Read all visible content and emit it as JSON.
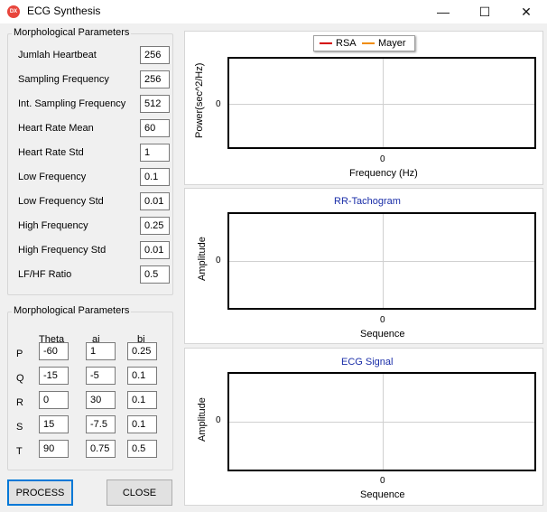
{
  "window": {
    "title": "ECG Synthesis",
    "icon": "DX",
    "minimize_glyph": "—",
    "maximize_glyph": "☐",
    "close_glyph": "✕"
  },
  "params_group": {
    "title": "Morphological Parameters",
    "fields": [
      {
        "label": "Jumlah Heartbeat",
        "value": "256"
      },
      {
        "label": "Sampling Frequency",
        "value": "256"
      },
      {
        "label": "Int. Sampling Frequency",
        "value": "512"
      },
      {
        "label": "Heart Rate Mean",
        "value": "60"
      },
      {
        "label": "Heart Rate Std",
        "value": "1"
      },
      {
        "label": "Low Frequency",
        "value": "0.1"
      },
      {
        "label": "Low Frequency Std",
        "value": "0.01"
      },
      {
        "label": "High Frequency",
        "value": "0.25"
      },
      {
        "label": "High Frequency Std",
        "value": "0.01"
      },
      {
        "label": "LF/HF Ratio",
        "value": "0.5"
      }
    ]
  },
  "morph_group": {
    "title": "Morphological Parameters",
    "columns": [
      "Theta",
      "ai",
      "bi"
    ],
    "rows": [
      {
        "label": "P",
        "values": [
          "-60",
          "1",
          "0.25"
        ]
      },
      {
        "label": "Q",
        "values": [
          "-15",
          "-5",
          "0.1"
        ]
      },
      {
        "label": "R",
        "values": [
          "0",
          "30",
          "0.1"
        ]
      },
      {
        "label": "S",
        "values": [
          "15",
          "-7.5",
          "0.1"
        ]
      },
      {
        "label": "T",
        "values": [
          "90",
          "0.75",
          "0.5"
        ]
      }
    ]
  },
  "buttons": {
    "process": "PROCESS",
    "close": "CLOSE"
  },
  "charts": [
    {
      "title": "",
      "ylabel": "Power(sec^2/Hz)",
      "xlabel": "Frequency (Hz)",
      "x_tick": "0",
      "y_tick": "0",
      "legend": [
        {
          "name": "RSA",
          "color": "#d40000"
        },
        {
          "name": "Mayer",
          "color": "#f08c00"
        }
      ]
    },
    {
      "title": "RR-Tachogram",
      "ylabel": "Amplitude",
      "xlabel": "Sequence",
      "x_tick": "0",
      "y_tick": "0"
    },
    {
      "title": "ECG Signal",
      "ylabel": "Amplitude",
      "xlabel": "Sequence",
      "x_tick": "0",
      "y_tick": "0"
    }
  ],
  "colors": {
    "chart_title": "#1a2ea8",
    "primary_button_border": "#0078d7",
    "app_icon": "#e8453c"
  }
}
